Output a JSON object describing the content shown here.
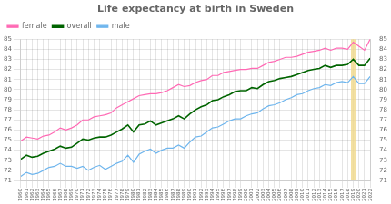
{
  "chart_data": {
    "type": "line",
    "title": "Life expectancy at birth in Sweden",
    "x": [
      1960,
      1961,
      1962,
      1963,
      1964,
      1965,
      1966,
      1967,
      1968,
      1969,
      1970,
      1971,
      1972,
      1973,
      1974,
      1975,
      1976,
      1977,
      1978,
      1979,
      1980,
      1981,
      1982,
      1983,
      1984,
      1985,
      1986,
      1987,
      1988,
      1989,
      1990,
      1991,
      1992,
      1993,
      1994,
      1995,
      1996,
      1997,
      1998,
      1999,
      2000,
      2001,
      2002,
      2003,
      2004,
      2005,
      2006,
      2007,
      2008,
      2009,
      2010,
      2011,
      2012,
      2013,
      2014,
      2015,
      2016,
      2017,
      2018,
      2019,
      2020,
      2021,
      2022
    ],
    "series": [
      {
        "name": "female",
        "color": "#ff69b4",
        "values": [
          74.9,
          75.3,
          75.2,
          75.1,
          75.4,
          75.5,
          75.8,
          76.2,
          76.0,
          76.2,
          76.5,
          77.0,
          77.0,
          77.3,
          77.4,
          77.5,
          77.7,
          78.2,
          78.5,
          78.8,
          79.1,
          79.4,
          79.5,
          79.6,
          79.6,
          79.7,
          79.9,
          80.2,
          80.5,
          80.3,
          80.4,
          80.7,
          80.9,
          81.0,
          81.4,
          81.4,
          81.7,
          81.8,
          81.9,
          82.0,
          82.0,
          82.1,
          82.1,
          82.4,
          82.7,
          82.8,
          83.0,
          83.2,
          83.2,
          83.3,
          83.5,
          83.7,
          83.8,
          83.9,
          84.1,
          83.9,
          84.1,
          84.1,
          84.0,
          84.7,
          84.3,
          83.9,
          85.0
        ]
      },
      {
        "name": "overall",
        "color": "#006400",
        "values": [
          73.1,
          73.5,
          73.3,
          73.4,
          73.7,
          73.9,
          74.1,
          74.4,
          74.2,
          74.3,
          74.7,
          75.1,
          75.0,
          75.2,
          75.3,
          75.3,
          75.5,
          75.8,
          76.1,
          76.5,
          75.8,
          76.5,
          76.6,
          76.9,
          76.5,
          76.7,
          76.9,
          77.1,
          77.4,
          77.1,
          77.6,
          78.0,
          78.3,
          78.5,
          78.9,
          79.0,
          79.3,
          79.5,
          79.8,
          79.9,
          79.9,
          80.2,
          80.1,
          80.5,
          80.8,
          80.9,
          81.1,
          81.2,
          81.3,
          81.5,
          81.7,
          81.9,
          82.0,
          82.1,
          82.4,
          82.2,
          82.4,
          82.4,
          82.5,
          83.0,
          82.4,
          82.4,
          83.1
        ]
      },
      {
        "name": "male",
        "color": "#6eb5ed",
        "values": [
          71.4,
          71.8,
          71.6,
          71.7,
          72.0,
          72.3,
          72.4,
          72.7,
          72.4,
          72.4,
          72.2,
          72.4,
          72.0,
          72.3,
          72.5,
          72.1,
          72.4,
          72.7,
          72.9,
          73.5,
          72.8,
          73.6,
          73.9,
          74.1,
          73.7,
          74.0,
          74.2,
          74.2,
          74.5,
          74.2,
          74.8,
          75.3,
          75.4,
          75.8,
          76.2,
          76.3,
          76.6,
          76.9,
          77.1,
          77.1,
          77.4,
          77.6,
          77.7,
          78.1,
          78.4,
          78.5,
          78.7,
          79.0,
          79.2,
          79.5,
          79.6,
          79.9,
          80.1,
          80.2,
          80.5,
          80.4,
          80.7,
          80.8,
          80.7,
          81.3,
          80.6,
          80.6,
          81.3
        ]
      }
    ],
    "xlim": [
      1960,
      2022
    ],
    "xticks": [
      1960,
      1961,
      1962,
      1963,
      1964,
      1965,
      1966,
      1967,
      1968,
      1969,
      1970,
      1971,
      1972,
      1973,
      1974,
      1975,
      1976,
      1977,
      1978,
      1979,
      1980,
      1981,
      1982,
      1983,
      1984,
      1985,
      1986,
      1987,
      1988,
      1989,
      1990,
      1991,
      1992,
      1993,
      1994,
      1995,
      1996,
      1997,
      1998,
      1999,
      2000,
      2001,
      2002,
      2003,
      2004,
      2005,
      2006,
      2007,
      2008,
      2009,
      2010,
      2011,
      2012,
      2013,
      2014,
      2015,
      2016,
      2017,
      2018,
      2019,
      2020,
      2021,
      2022
    ],
    "ylim": [
      71,
      85
    ],
    "yticks": [
      71,
      72,
      73,
      74,
      75,
      76,
      77,
      78,
      79,
      80,
      81,
      82,
      83,
      84,
      85
    ],
    "y2lim": [
      71,
      85
    ],
    "y2ticks": [
      71,
      72,
      73,
      74,
      75,
      76,
      77,
      78,
      79,
      80,
      81,
      82,
      83,
      84,
      85
    ],
    "highlight": {
      "x": 2019,
      "color": "#f0d88a"
    },
    "grid": true,
    "legend": "upper left"
  }
}
